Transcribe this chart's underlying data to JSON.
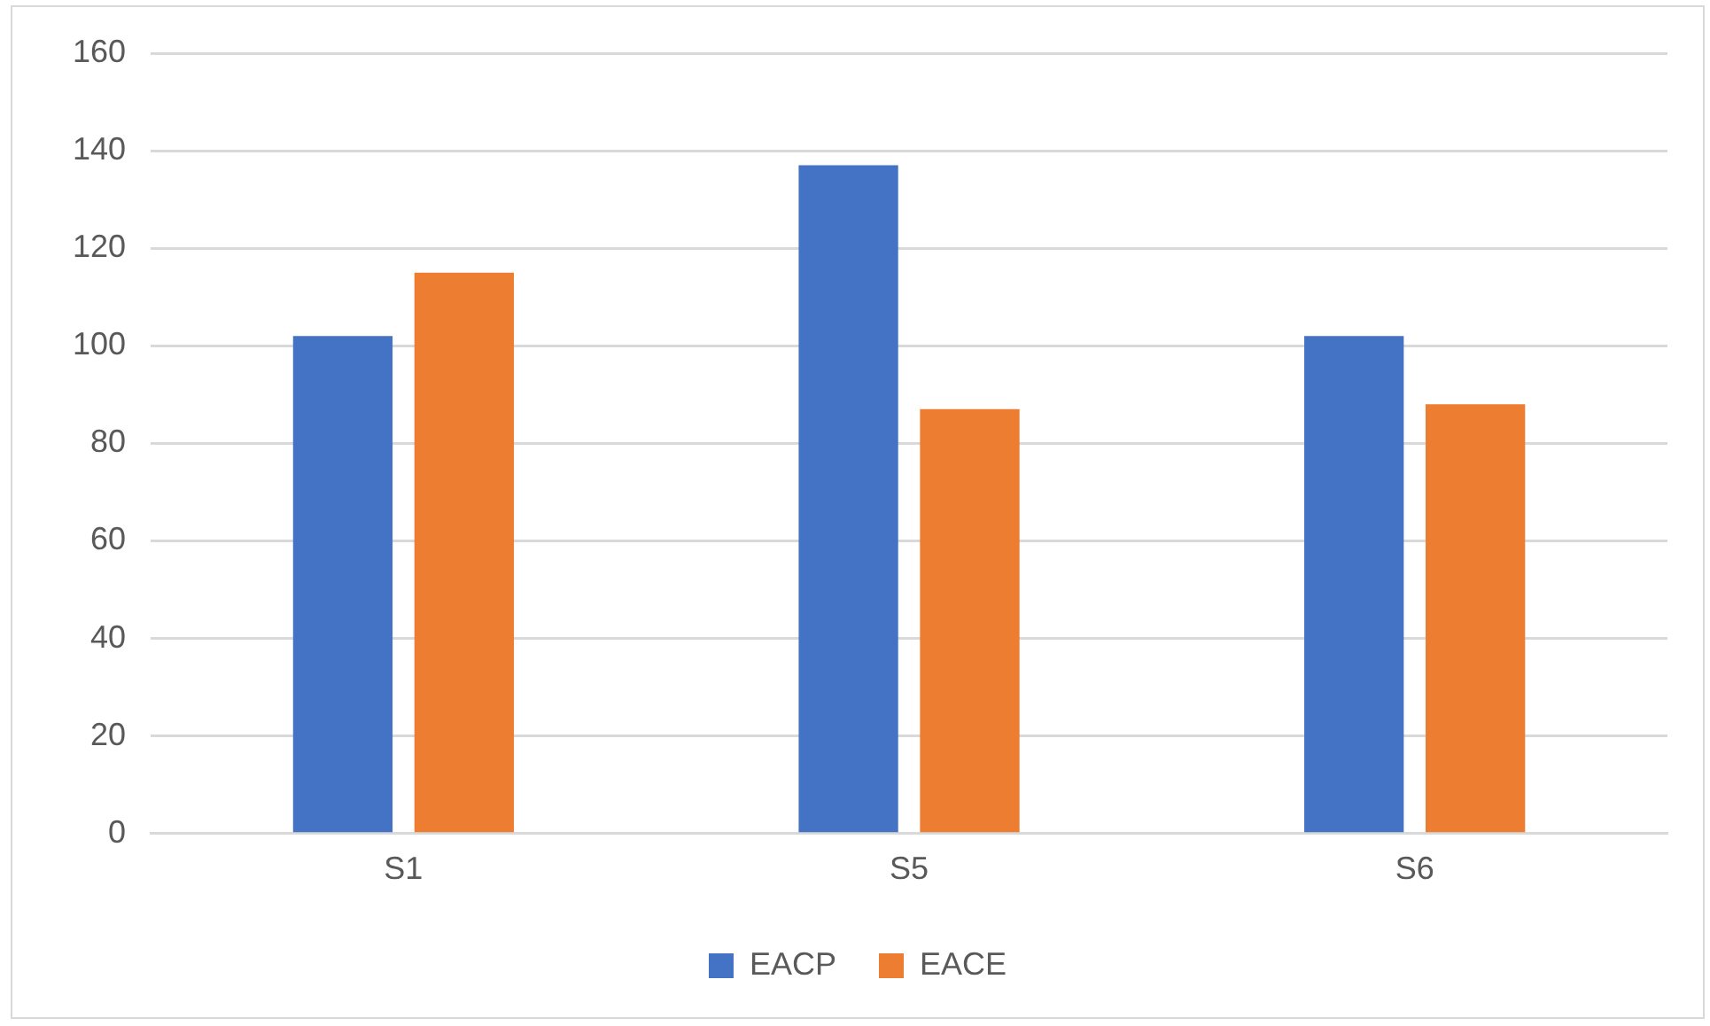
{
  "chart_data": {
    "type": "bar",
    "categories": [
      "S1",
      "S5",
      "S6"
    ],
    "series": [
      {
        "name": "EACP",
        "color": "#4472c4",
        "values": [
          102,
          137,
          102
        ]
      },
      {
        "name": "EACE",
        "color": "#ed7d31",
        "values": [
          115,
          87,
          88
        ]
      }
    ],
    "ylim": [
      0,
      160
    ],
    "yticks": [
      0,
      20,
      40,
      60,
      80,
      100,
      120,
      140,
      160
    ],
    "grid": "y",
    "legend": "bottom"
  }
}
